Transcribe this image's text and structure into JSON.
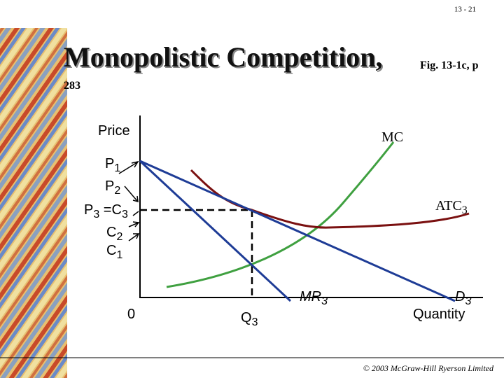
{
  "header": {
    "slide_number": "13 - 21",
    "title": "Monopolistic Competition,",
    "figure_ref": "Fig. 13-1c, p",
    "page_ref": "283"
  },
  "diagram": {
    "y_axis_label": "Price",
    "x_axis_label": "Quantity",
    "origin_label": "0",
    "price_labels": [
      [
        "P",
        "1"
      ],
      [
        "P",
        "2"
      ],
      [
        "P",
        "3",
        " =C",
        "3"
      ],
      [
        "C",
        "2"
      ],
      [
        "C",
        "1"
      ]
    ],
    "quantity_label": [
      "Q",
      "3"
    ],
    "curves": {
      "mc": [
        "MC"
      ],
      "atc": [
        "ATC",
        "3"
      ],
      "mr": [
        "MR",
        "3"
      ],
      "demand": [
        "D",
        "3"
      ]
    }
  },
  "footer": "© 2003 McGraw-Hill Ryerson Limited"
}
